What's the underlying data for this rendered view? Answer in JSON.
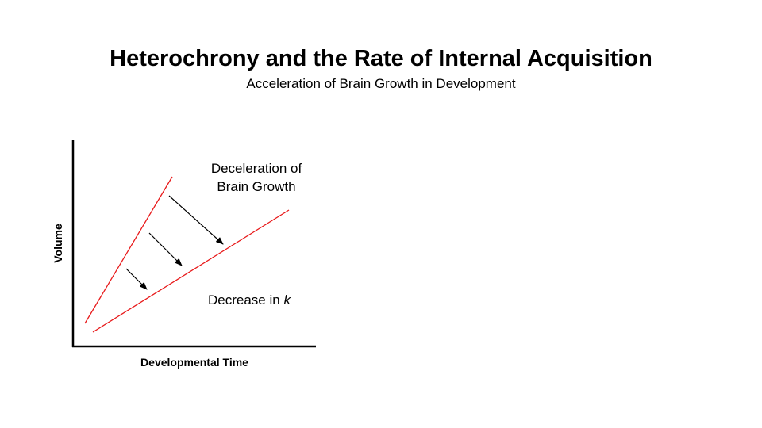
{
  "slide": {
    "title": "Heterochrony and the Rate of Internal Acquisition",
    "subtitle": "Acceleration of Brain Growth in Development"
  },
  "diagram": {
    "y_axis_label": "Volume",
    "x_axis_label": "Developmental Time",
    "upper_annotation_line1": "Deceleration of",
    "upper_annotation_line2": "Brain Growth",
    "lower_annotation_prefix": "Decrease in ",
    "lower_annotation_symbol": "k",
    "line_color": "#e8191a",
    "arrow_color": "#000000"
  }
}
